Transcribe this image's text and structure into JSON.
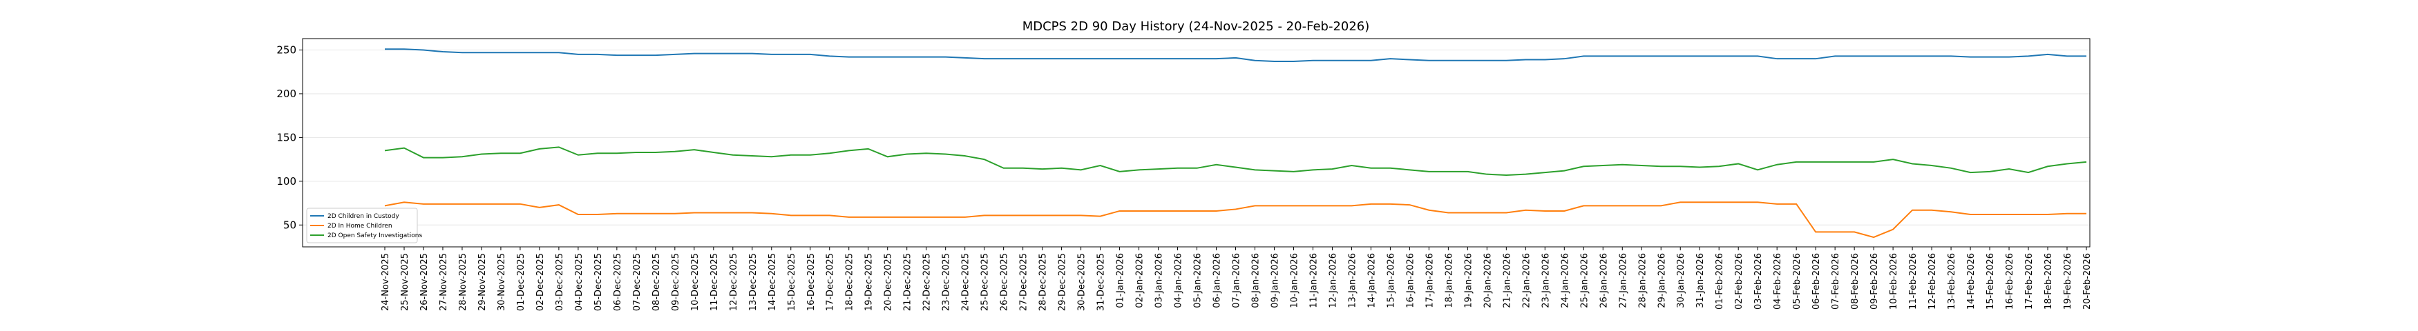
{
  "chart_data": {
    "type": "line",
    "title": "MDCPS 2D 90 Day History (24-Nov-2025 - 20-Feb-2026)",
    "categories": [
      "24-Nov-2025",
      "25-Nov-2025",
      "26-Nov-2025",
      "27-Nov-2025",
      "28-Nov-2025",
      "29-Nov-2025",
      "30-Nov-2025",
      "01-Dec-2025",
      "02-Dec-2025",
      "03-Dec-2025",
      "04-Dec-2025",
      "05-Dec-2025",
      "06-Dec-2025",
      "07-Dec-2025",
      "08-Dec-2025",
      "09-Dec-2025",
      "10-Dec-2025",
      "11-Dec-2025",
      "12-Dec-2025",
      "13-Dec-2025",
      "14-Dec-2025",
      "15-Dec-2025",
      "16-Dec-2025",
      "17-Dec-2025",
      "18-Dec-2025",
      "19-Dec-2025",
      "20-Dec-2025",
      "21-Dec-2025",
      "22-Dec-2025",
      "23-Dec-2025",
      "24-Dec-2025",
      "25-Dec-2025",
      "26-Dec-2025",
      "27-Dec-2025",
      "28-Dec-2025",
      "29-Dec-2025",
      "30-Dec-2025",
      "31-Dec-2025",
      "01-Jan-2026",
      "02-Jan-2026",
      "03-Jan-2026",
      "04-Jan-2026",
      "05-Jan-2026",
      "06-Jan-2026",
      "07-Jan-2026",
      "08-Jan-2026",
      "09-Jan-2026",
      "10-Jan-2026",
      "11-Jan-2026",
      "12-Jan-2026",
      "13-Jan-2026",
      "14-Jan-2026",
      "15-Jan-2026",
      "16-Jan-2026",
      "17-Jan-2026",
      "18-Jan-2026",
      "19-Jan-2026",
      "20-Jan-2026",
      "21-Jan-2026",
      "22-Jan-2026",
      "23-Jan-2026",
      "24-Jan-2026",
      "25-Jan-2026",
      "26-Jan-2026",
      "27-Jan-2026",
      "28-Jan-2026",
      "29-Jan-2026",
      "30-Jan-2026",
      "31-Jan-2026",
      "01-Feb-2026",
      "02-Feb-2026",
      "03-Feb-2026",
      "04-Feb-2026",
      "05-Feb-2026",
      "06-Feb-2026",
      "07-Feb-2026",
      "08-Feb-2026",
      "09-Feb-2026",
      "10-Feb-2026",
      "11-Feb-2026",
      "12-Feb-2026",
      "13-Feb-2026",
      "14-Feb-2026",
      "15-Feb-2026",
      "16-Feb-2026",
      "17-Feb-2026",
      "18-Feb-2026",
      "19-Feb-2026",
      "20-Feb-2026"
    ],
    "series": [
      {
        "name": "2D Children in Custody",
        "color": "#1f77b4",
        "values": [
          251,
          251,
          250,
          248,
          247,
          247,
          247,
          247,
          247,
          247,
          245,
          245,
          244,
          244,
          244,
          245,
          246,
          246,
          246,
          246,
          245,
          245,
          245,
          243,
          242,
          242,
          242,
          242,
          242,
          242,
          241,
          240,
          240,
          240,
          240,
          240,
          240,
          240,
          240,
          240,
          240,
          240,
          240,
          240,
          241,
          238,
          237,
          237,
          238,
          238,
          238,
          238,
          240,
          239,
          238,
          238,
          238,
          238,
          238,
          239,
          239,
          240,
          243,
          243,
          243,
          243,
          243,
          243,
          243,
          243,
          243,
          243,
          240,
          240,
          240,
          243,
          243,
          243,
          243,
          243,
          243,
          243,
          242,
          242,
          242,
          243,
          245,
          243,
          243
        ]
      },
      {
        "name": "2D In Home Children",
        "color": "#ff7f0e",
        "values": [
          72,
          76,
          74,
          74,
          74,
          74,
          74,
          74,
          70,
          73,
          62,
          62,
          63,
          63,
          63,
          63,
          64,
          64,
          64,
          64,
          63,
          61,
          61,
          61,
          59,
          59,
          59,
          59,
          59,
          59,
          59,
          61,
          61,
          61,
          61,
          61,
          61,
          60,
          66,
          66,
          66,
          66,
          66,
          66,
          68,
          72,
          72,
          72,
          72,
          72,
          72,
          74,
          74,
          73,
          67,
          64,
          64,
          64,
          64,
          67,
          66,
          66,
          72,
          72,
          72,
          72,
          72,
          76,
          76,
          76,
          76,
          76,
          74,
          74,
          42,
          42,
          42,
          36,
          45,
          67,
          67,
          65,
          62,
          62,
          62,
          62,
          62,
          63,
          63
        ]
      },
      {
        "name": "2D Open Safety Investigations",
        "color": "#2ca02c",
        "values": [
          135,
          138,
          127,
          127,
          128,
          131,
          132,
          132,
          137,
          139,
          130,
          132,
          132,
          133,
          133,
          134,
          136,
          133,
          130,
          129,
          128,
          130,
          130,
          132,
          135,
          137,
          128,
          131,
          132,
          131,
          129,
          125,
          115,
          115,
          114,
          115,
          113,
          118,
          111,
          113,
          114,
          115,
          115,
          119,
          116,
          113,
          112,
          111,
          113,
          114,
          118,
          115,
          115,
          113,
          111,
          111,
          111,
          108,
          107,
          108,
          110,
          112,
          117,
          118,
          119,
          118,
          117,
          117,
          116,
          117,
          120,
          113,
          119,
          122,
          122,
          122,
          122,
          122,
          125,
          120,
          118,
          115,
          110,
          111,
          114,
          110,
          117,
          120,
          122
        ]
      }
    ],
    "ylim": [
      25,
      263
    ],
    "yticks": [
      50,
      100,
      150,
      200,
      250
    ],
    "grid": true,
    "legend": "lower left"
  }
}
